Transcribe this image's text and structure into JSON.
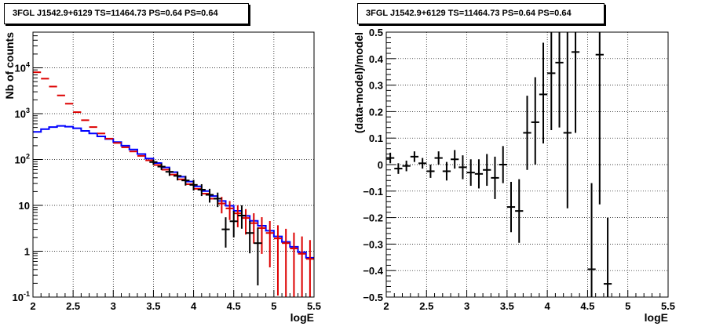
{
  "chart_data": [
    {
      "type": "line",
      "title": "3FGL J1542.9+6129 TS=11464.73 PS=0.64 PS=0.64",
      "xlabel": "logE",
      "ylabel": "Nb of counts",
      "xlim": [
        2,
        5.5
      ],
      "ylim": [
        0.1,
        60000
      ],
      "yscale": "log",
      "grid": true,
      "xticks": [
        "2",
        "2.5",
        "3",
        "3.5",
        "4",
        "4.5",
        "5",
        "5.5"
      ],
      "yticks": [
        {
          "value": 0.1,
          "label": "10^-1"
        },
        {
          "value": 1,
          "label": "1"
        },
        {
          "value": 10,
          "label": "10"
        },
        {
          "value": 100,
          "label": "10^2"
        },
        {
          "value": 1000,
          "label": "10^3"
        },
        {
          "value": 10000,
          "label": "10^4"
        }
      ],
      "series": [
        {
          "color": "#0000ff",
          "style": "histogram",
          "x": [
            2.0,
            2.1,
            2.2,
            2.3,
            2.4,
            2.5,
            2.6,
            2.7,
            2.8,
            2.9,
            3.0,
            3.1,
            3.2,
            3.3,
            3.4,
            3.5,
            3.6,
            3.7,
            3.8,
            3.9,
            4.0,
            4.1,
            4.2,
            4.3,
            4.4,
            4.5,
            4.6,
            4.7,
            4.8,
            4.9,
            5.0,
            5.1,
            5.2,
            5.3,
            5.4,
            5.5
          ],
          "y": [
            400,
            460,
            510,
            540,
            520,
            480,
            420,
            370,
            320,
            280,
            240,
            200,
            165,
            132,
            105,
            84,
            67,
            53,
            42,
            33,
            26,
            20.5,
            16,
            12.5,
            9.8,
            7.6,
            5.9,
            4.6,
            3.6,
            2.8,
            2.1,
            1.6,
            1.25,
            0.95,
            0.72,
            0.55
          ]
        },
        {
          "color": "#dd0000",
          "style": "errorbars",
          "x": [
            2.05,
            2.15,
            2.25,
            2.35,
            2.45,
            2.55,
            2.65,
            2.75,
            2.85,
            2.95,
            3.05,
            3.15,
            3.25,
            3.35,
            3.45,
            3.55,
            3.65,
            3.75,
            3.85,
            3.95,
            4.05,
            4.15,
            4.25,
            4.35,
            4.45,
            4.55,
            4.65,
            4.75,
            4.85,
            4.95,
            5.05,
            5.15,
            5.25,
            5.35,
            5.45
          ],
          "y": [
            8000,
            5800,
            3900,
            2500,
            1650,
            1080,
            720,
            510,
            370,
            285,
            230,
            185,
            150,
            120,
            96,
            76,
            60,
            47,
            37,
            29,
            23,
            18,
            14,
            11,
            8.6,
            6.7,
            5.3,
            4.1,
            3.2,
            2.5,
            1.9,
            1.5,
            1.15,
            0.88,
            0.68
          ]
        },
        {
          "color": "#000000",
          "style": "errorbars",
          "x": [
            3.5,
            3.6,
            3.7,
            3.8,
            3.9,
            4.0,
            4.1,
            4.2,
            4.3,
            4.4,
            4.5,
            4.6,
            4.7,
            4.8
          ],
          "y": [
            88,
            70,
            54,
            44,
            35,
            28,
            22,
            17,
            14,
            3,
            4.5,
            6,
            2.5,
            1.5
          ],
          "ylow": [
            76,
            59,
            44,
            35,
            27,
            21,
            16,
            11.5,
            9.2,
            1.2,
            2.0,
            3.1,
            0.9,
            0.18
          ],
          "yhigh": [
            100,
            82,
            65,
            54,
            44,
            36,
            29,
            23,
            19,
            5.5,
            7.6,
            10,
            4.6,
            3.3
          ]
        }
      ]
    },
    {
      "type": "scatter",
      "title": "3FGL J1542.9+6129 TS=11464.73 PS=0.64 PS=0.64",
      "xlabel": "logE",
      "ylabel": "(data-model)/model",
      "xlim": [
        2,
        5.5
      ],
      "ylim": [
        -0.5,
        0.5
      ],
      "grid": true,
      "xticks": [
        "2",
        "2.5",
        "3",
        "3.5",
        "4",
        "4.5",
        "5",
        "5.5"
      ],
      "yticks": [
        "0.5",
        "0.4",
        "0.3",
        "0.2",
        "0.1",
        "0",
        "−0.1",
        "−0.2",
        "−0.3",
        "−0.4",
        "−0.5"
      ],
      "series": [
        {
          "color": "#000000",
          "style": "errorbars",
          "x": [
            2.05,
            2.15,
            2.25,
            2.35,
            2.45,
            2.55,
            2.65,
            2.75,
            2.85,
            2.95,
            3.05,
            3.15,
            3.25,
            3.35,
            3.45,
            3.55,
            3.65,
            3.75,
            3.85,
            3.95,
            4.05,
            4.15,
            4.25,
            4.35,
            4.55,
            4.65,
            4.75
          ],
          "y": [
            0.025,
            -0.015,
            -0.005,
            0.03,
            0.005,
            -0.025,
            0.025,
            -0.025,
            0.02,
            -0.01,
            -0.03,
            -0.035,
            -0.02,
            -0.05,
            0.0,
            -0.16,
            -0.175,
            0.12,
            0.16,
            0.265,
            0.345,
            0.385,
            0.12,
            0.425,
            -0.395,
            0.415,
            -0.45
          ],
          "ylow": [
            0.005,
            -0.035,
            -0.025,
            0.01,
            -0.015,
            -0.05,
            0.0,
            -0.06,
            -0.015,
            -0.055,
            -0.08,
            -0.09,
            -0.08,
            -0.13,
            -0.07,
            -0.255,
            -0.295,
            -0.02,
            0.0,
            0.08,
            0.13,
            0.14,
            -0.165,
            0.12,
            -0.5,
            -0.15,
            -0.5
          ],
          "yhigh": [
            0.045,
            0.005,
            0.015,
            0.05,
            0.025,
            0.0,
            0.05,
            0.01,
            0.055,
            0.035,
            0.02,
            0.02,
            0.04,
            0.03,
            0.07,
            -0.065,
            -0.055,
            0.26,
            0.33,
            0.46,
            0.5,
            0.5,
            0.5,
            0.5,
            -0.07,
            0.5,
            -0.2
          ]
        }
      ]
    }
  ]
}
